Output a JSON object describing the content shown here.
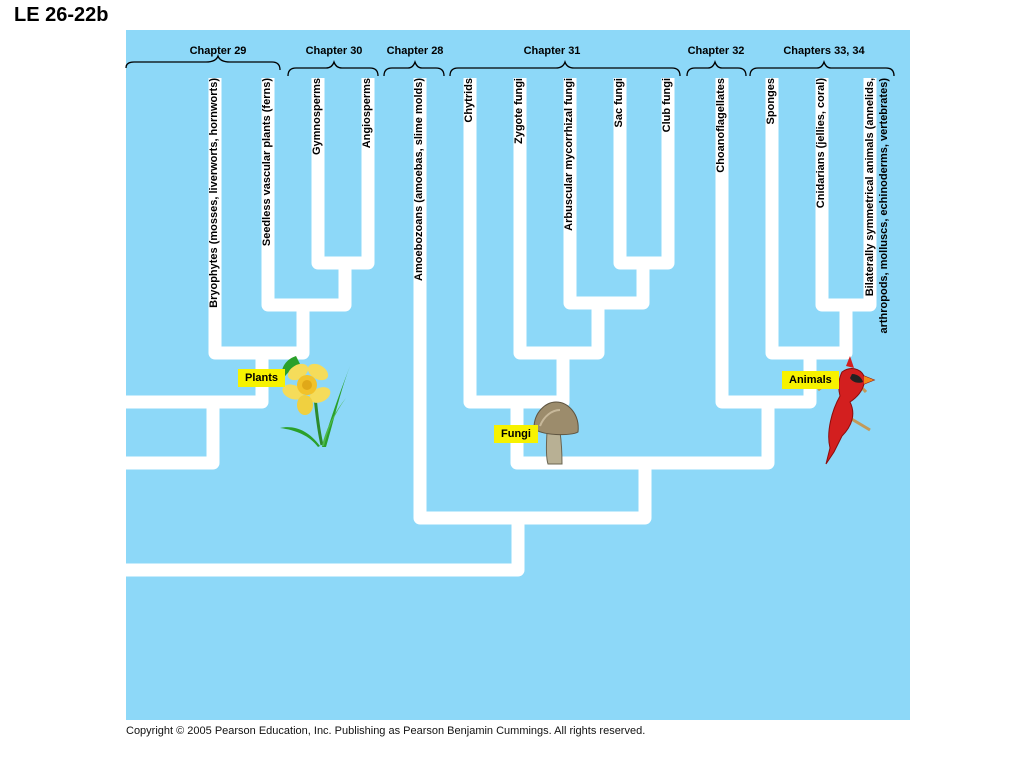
{
  "figure_label": "LE 26-22b",
  "chapters": [
    {
      "id": "ch29",
      "label": "Chapter 29"
    },
    {
      "id": "ch30",
      "label": "Chapter 30"
    },
    {
      "id": "ch28",
      "label": "Chapter 28"
    },
    {
      "id": "ch31",
      "label": "Chapter 31"
    },
    {
      "id": "ch32",
      "label": "Chapter 32"
    },
    {
      "id": "ch3334",
      "label": "Chapters 33, 34"
    }
  ],
  "taxa": [
    {
      "id": "bryophytes",
      "label": "Bryophytes (mosses, liverworts, hornworts)"
    },
    {
      "id": "ferns",
      "label": "Seedless vascular plants (ferns)"
    },
    {
      "id": "gymnosperms",
      "label": "Gymnosperms"
    },
    {
      "id": "angiosperms",
      "label": "Angiosperms"
    },
    {
      "id": "amoebozoans",
      "label": "Amoebozoans (amoebas, slime molds)"
    },
    {
      "id": "chytrids",
      "label": "Chytrids"
    },
    {
      "id": "zygote",
      "label": "Zygote fungi"
    },
    {
      "id": "amf",
      "label": "Arbuscular mycorrhizal fungi"
    },
    {
      "id": "sac",
      "label": "Sac fungi"
    },
    {
      "id": "club",
      "label": "Club fungi"
    },
    {
      "id": "choano",
      "label": "Choanoflagellates"
    },
    {
      "id": "sponges",
      "label": "Sponges"
    },
    {
      "id": "cnidarians",
      "label": "Cnidarians (jellies, coral)"
    },
    {
      "id": "bilaterians_1",
      "label": "Bilaterally symmetrical animals (annelids,"
    },
    {
      "id": "bilaterians_2",
      "label": "arthropods, molluscs, echinoderms, vertebrates)"
    }
  ],
  "groups": {
    "plants": "Plants",
    "fungi": "Fungi",
    "animals": "Animals"
  },
  "colors": {
    "panel": "#8dd8f8",
    "branch": "#ffffff",
    "tag": "#f7f200"
  },
  "copyright": "Copyright ©  2005 Pearson Education, Inc. Publishing as Pearson Benjamin Cummings. All rights reserved."
}
